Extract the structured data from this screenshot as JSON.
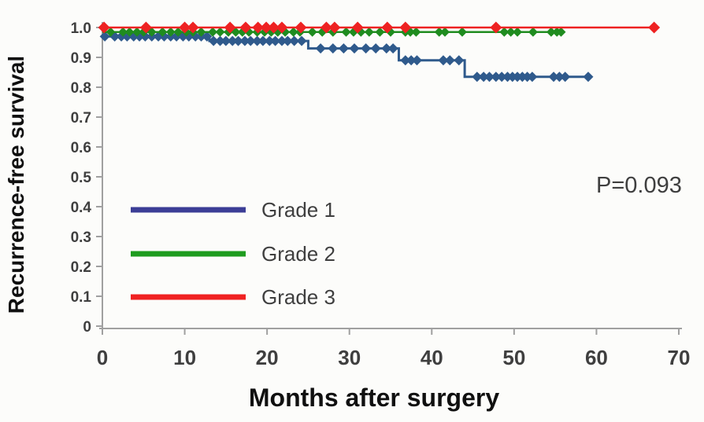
{
  "chart_data": {
    "type": "line",
    "subtype": "kaplan-meier-step-curves",
    "title": "",
    "xlabel": "Months after surgery",
    "ylabel": "Recurrence-free survival",
    "annotation": "P=0.093",
    "xlim": [
      0,
      70
    ],
    "ylim": [
      0,
      1.0
    ],
    "grid": false,
    "legend_position": "inside-left-middle",
    "xtick_values": [
      0,
      10,
      20,
      30,
      40,
      50,
      60,
      70
    ],
    "xtick_labels": [
      "0",
      "10",
      "20",
      "30",
      "40",
      "50",
      "60",
      "70"
    ],
    "ytick_values": [
      0,
      0.1,
      0.2,
      0.3,
      0.4,
      0.5,
      0.6,
      0.7,
      0.8,
      0.9,
      1.0
    ],
    "ytick_labels": [
      "0",
      "0.1",
      "0.2",
      "0.3",
      "0.4",
      "0.5",
      "0.6",
      "0.7",
      "0.8",
      "0.9",
      "1.0"
    ],
    "colors": {
      "axis": "#a0a0a0",
      "tick_label": "#3f3f3f",
      "annotation_text": "#222222",
      "background": "#fcfcfa"
    },
    "series": [
      {
        "name": "Grade 1",
        "color": "#2f5a8c",
        "legend_color": "#3c3e96",
        "line_width": 3,
        "marker": "diamond",
        "marker_size": 6.5,
        "steps": [
          [
            0,
            0.97
          ],
          [
            13,
            0.97
          ],
          [
            13,
            0.955
          ],
          [
            25,
            0.955
          ],
          [
            25,
            0.93
          ],
          [
            36,
            0.93
          ],
          [
            36,
            0.89
          ],
          [
            44,
            0.89
          ],
          [
            44,
            0.835
          ],
          [
            59,
            0.835
          ]
        ],
        "censors": [
          [
            0.3,
            0.97
          ],
          [
            1.5,
            0.97
          ],
          [
            2.3,
            0.97
          ],
          [
            3,
            0.97
          ],
          [
            3.8,
            0.97
          ],
          [
            4.5,
            0.97
          ],
          [
            5.2,
            0.97
          ],
          [
            6,
            0.97
          ],
          [
            6.8,
            0.97
          ],
          [
            7.5,
            0.97
          ],
          [
            8.3,
            0.97
          ],
          [
            9,
            0.97
          ],
          [
            9.8,
            0.97
          ],
          [
            10.5,
            0.97
          ],
          [
            11.3,
            0.97
          ],
          [
            12,
            0.97
          ],
          [
            12.7,
            0.97
          ],
          [
            13.5,
            0.955
          ],
          [
            14.3,
            0.955
          ],
          [
            15,
            0.955
          ],
          [
            15.8,
            0.955
          ],
          [
            16.5,
            0.955
          ],
          [
            17.3,
            0.955
          ],
          [
            18,
            0.955
          ],
          [
            18.8,
            0.955
          ],
          [
            19.5,
            0.955
          ],
          [
            20.3,
            0.955
          ],
          [
            21,
            0.955
          ],
          [
            21.8,
            0.955
          ],
          [
            22.5,
            0.955
          ],
          [
            23.3,
            0.955
          ],
          [
            24.2,
            0.955
          ],
          [
            26.5,
            0.93
          ],
          [
            28,
            0.93
          ],
          [
            29.3,
            0.93
          ],
          [
            30.6,
            0.93
          ],
          [
            32,
            0.93
          ],
          [
            33.2,
            0.93
          ],
          [
            34.5,
            0.93
          ],
          [
            35.3,
            0.93
          ],
          [
            36.8,
            0.89
          ],
          [
            37.5,
            0.89
          ],
          [
            38.2,
            0.89
          ],
          [
            41.4,
            0.89
          ],
          [
            42.2,
            0.89
          ],
          [
            43.3,
            0.89
          ],
          [
            45.5,
            0.835
          ],
          [
            46.3,
            0.835
          ],
          [
            47,
            0.835
          ],
          [
            47.8,
            0.835
          ],
          [
            48.5,
            0.835
          ],
          [
            49.2,
            0.835
          ],
          [
            49.8,
            0.835
          ],
          [
            50.4,
            0.835
          ],
          [
            51,
            0.835
          ],
          [
            51.6,
            0.835
          ],
          [
            52.2,
            0.835
          ],
          [
            54.8,
            0.835
          ],
          [
            55.5,
            0.835
          ],
          [
            56.2,
            0.835
          ],
          [
            59,
            0.835
          ]
        ]
      },
      {
        "name": "Grade 2",
        "color": "#1f8c1f",
        "legend_color": "#1f9c1f",
        "line_width": 2.5,
        "marker": "diamond",
        "marker_size": 6,
        "steps": [
          [
            0,
            0.985
          ],
          [
            55.7,
            0.985
          ]
        ],
        "censors": [
          [
            1,
            0.985
          ],
          [
            2.5,
            0.985
          ],
          [
            3.3,
            0.985
          ],
          [
            4.2,
            0.985
          ],
          [
            5,
            0.985
          ],
          [
            6,
            0.985
          ],
          [
            7.3,
            0.985
          ],
          [
            8.3,
            0.985
          ],
          [
            9.2,
            0.985
          ],
          [
            10.2,
            0.985
          ],
          [
            11,
            0.985
          ],
          [
            12,
            0.985
          ],
          [
            13.4,
            0.985
          ],
          [
            14.3,
            0.985
          ],
          [
            15.3,
            0.985
          ],
          [
            16.2,
            0.985
          ],
          [
            17,
            0.985
          ],
          [
            17.8,
            0.985
          ],
          [
            18.8,
            0.985
          ],
          [
            19.7,
            0.985
          ],
          [
            20.5,
            0.985
          ],
          [
            21.3,
            0.985
          ],
          [
            22.2,
            0.985
          ],
          [
            23.2,
            0.985
          ],
          [
            24,
            0.985
          ],
          [
            25.5,
            0.985
          ],
          [
            26.7,
            0.985
          ],
          [
            28,
            0.985
          ],
          [
            29.6,
            0.985
          ],
          [
            30.5,
            0.985
          ],
          [
            31.4,
            0.985
          ],
          [
            32.4,
            0.985
          ],
          [
            33.7,
            0.985
          ],
          [
            35,
            0.985
          ],
          [
            36.8,
            0.985
          ],
          [
            37.4,
            0.985
          ],
          [
            38.1,
            0.985
          ],
          [
            40.9,
            0.985
          ],
          [
            41.6,
            0.985
          ],
          [
            43.7,
            0.985
          ],
          [
            48.8,
            0.985
          ],
          [
            49.6,
            0.985
          ],
          [
            50.4,
            0.985
          ],
          [
            52.3,
            0.985
          ],
          [
            54.5,
            0.985
          ],
          [
            55.2,
            0.985
          ],
          [
            55.7,
            0.985
          ]
        ]
      },
      {
        "name": "Grade 3",
        "color": "#ee2222",
        "legend_color": "#f02222",
        "line_width": 2.5,
        "marker": "diamond",
        "marker_size": 7.5,
        "steps": [
          [
            0,
            1.0
          ],
          [
            67,
            1.0
          ]
        ],
        "censors": [
          [
            0.2,
            1.0
          ],
          [
            5.3,
            1.0
          ],
          [
            10,
            1.0
          ],
          [
            11,
            1.0
          ],
          [
            15.5,
            1.0
          ],
          [
            17.4,
            1.0
          ],
          [
            18.9,
            1.0
          ],
          [
            19.9,
            1.0
          ],
          [
            20.8,
            1.0
          ],
          [
            21.8,
            1.0
          ],
          [
            24.1,
            1.0
          ],
          [
            27.2,
            1.0
          ],
          [
            28.2,
            1.0
          ],
          [
            31,
            1.0
          ],
          [
            34.6,
            1.0
          ],
          [
            36.8,
            1.0
          ],
          [
            47.8,
            1.0
          ],
          [
            67,
            1.0
          ]
        ]
      }
    ],
    "legend": [
      {
        "label": "Grade 1",
        "color": "#3c3e96"
      },
      {
        "label": "Grade 2",
        "color": "#1f9c1f"
      },
      {
        "label": "Grade 3",
        "color": "#f02222"
      }
    ]
  }
}
